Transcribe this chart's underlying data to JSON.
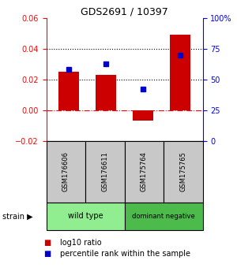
{
  "title": "GDS2691 / 10397",
  "samples": [
    "GSM176606",
    "GSM176611",
    "GSM175764",
    "GSM175765"
  ],
  "log10_ratio": [
    0.025,
    0.023,
    -0.007,
    0.049
  ],
  "percentile_rank": [
    58,
    63,
    42,
    70
  ],
  "groups": [
    {
      "label": "wild type",
      "samples": [
        0,
        1
      ],
      "color": "#90EE90"
    },
    {
      "label": "dominant negative",
      "samples": [
        2,
        3
      ],
      "color": "#4CBB4C"
    }
  ],
  "bar_color": "#CC0000",
  "dot_color": "#0000CC",
  "ylim_left": [
    -0.02,
    0.06
  ],
  "ylim_right": [
    0,
    100
  ],
  "yticks_left": [
    -0.02,
    0,
    0.02,
    0.04,
    0.06
  ],
  "yticks_right": [
    0,
    25,
    50,
    75,
    100
  ],
  "background_color": "#ffffff",
  "legend_log10_label": "log10 ratio",
  "legend_pct_label": "percentile rank within the sample",
  "bar_width": 0.55
}
